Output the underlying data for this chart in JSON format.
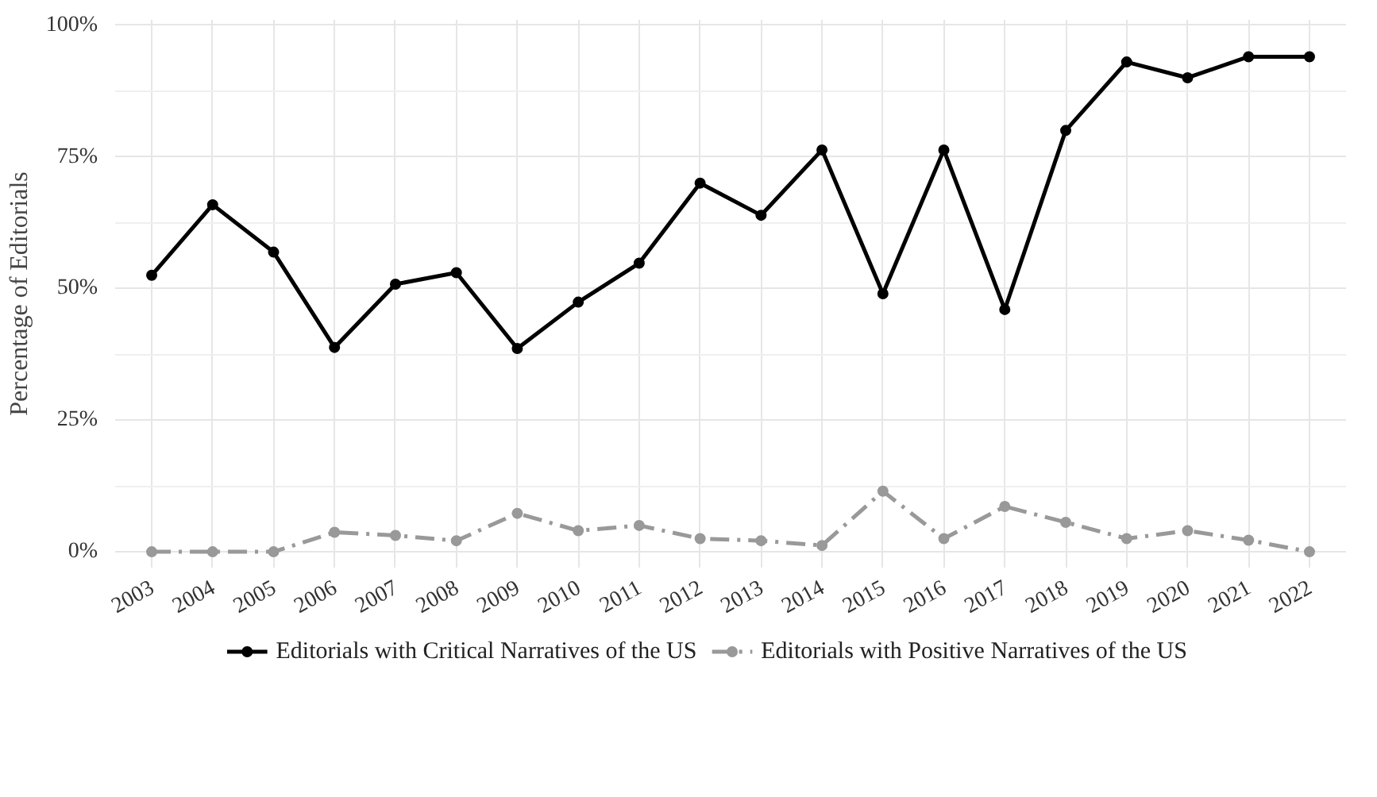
{
  "chart_data": {
    "type": "line",
    "ylabel": "Percentage of Editorials",
    "categories": [
      "2003",
      "2004",
      "2005",
      "2006",
      "2007",
      "2008",
      "2009",
      "2010",
      "2011",
      "2012",
      "2013",
      "2014",
      "2015",
      "2016",
      "2017",
      "2018",
      "2019",
      "2020",
      "2021",
      "2022"
    ],
    "series": [
      {
        "name": "Editorials with Critical Narratives of the US",
        "color": "#000000",
        "line_style": "solid",
        "values": [
          52.5,
          65.9,
          56.9,
          38.8,
          50.8,
          53,
          38.6,
          47.4,
          54.8,
          70,
          63.9,
          76.3,
          49,
          76.3,
          46,
          80,
          93,
          90,
          94,
          94
        ]
      },
      {
        "name": "Editorials with Positive Narratives of the US",
        "color": "#999999",
        "line_style": "dashed",
        "values": [
          0,
          0,
          0,
          3.7,
          3.1,
          2.1,
          7.3,
          4,
          5,
          2.5,
          2.1,
          1.2,
          11.5,
          2.5,
          8.6,
          5.6,
          2.5,
          4,
          2.2,
          0
        ]
      }
    ],
    "ylim": [
      -3,
      101
    ],
    "yticks": [
      {
        "value": 0,
        "label": "0%"
      },
      {
        "value": 25,
        "label": "25%"
      },
      {
        "value": 50,
        "label": "50%"
      },
      {
        "value": 75,
        "label": "75%"
      },
      {
        "value": 100,
        "label": "100%"
      }
    ],
    "grid": true,
    "legend": "bottom",
    "marker": "circle"
  }
}
